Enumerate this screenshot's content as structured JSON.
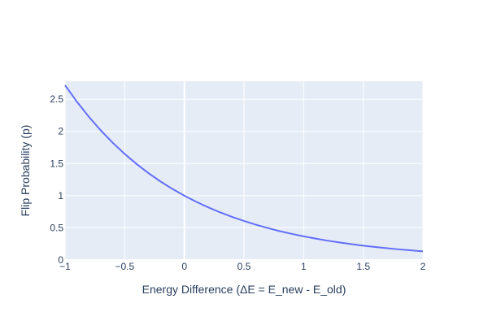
{
  "chart_data": {
    "type": "line",
    "xlabel": "Energy Difference (ΔE = E_new - E_old)",
    "ylabel": "Flip Probability (p)",
    "xlim": [
      -1,
      2
    ],
    "ylim": [
      0,
      2.78
    ],
    "grid": true,
    "x_ticks": [
      -1,
      -0.5,
      0,
      0.5,
      1,
      1.5,
      2
    ],
    "x_tick_labels": [
      "−1",
      "−0.5",
      "0",
      "0.5",
      "1",
      "1.5",
      "2"
    ],
    "y_ticks": [
      0,
      0.5,
      1,
      1.5,
      2,
      2.5
    ],
    "y_tick_labels": [
      "0",
      "0.5",
      "1",
      "1.5",
      "2",
      "2.5"
    ],
    "colors": {
      "plot_background": "#e5ecf6",
      "grid": "#ffffff",
      "line": "#636efa",
      "text": "#2a3f5f"
    },
    "series": [
      {
        "x": [
          -1,
          -0.9,
          -0.8,
          -0.7,
          -0.6,
          -0.5,
          -0.4,
          -0.3,
          -0.2,
          -0.1,
          0,
          0.1,
          0.2,
          0.3,
          0.4,
          0.5,
          0.6,
          0.7,
          0.8,
          0.9,
          1,
          1.1,
          1.2,
          1.3,
          1.4,
          1.5,
          1.6,
          1.7,
          1.8,
          1.9,
          2
        ],
        "y": [
          2.718,
          2.46,
          2.226,
          2.014,
          1.822,
          1.649,
          1.492,
          1.35,
          1.221,
          1.105,
          1,
          0.905,
          0.819,
          0.741,
          0.67,
          0.607,
          0.549,
          0.497,
          0.449,
          0.407,
          0.368,
          0.333,
          0.301,
          0.273,
          0.247,
          0.223,
          0.202,
          0.183,
          0.165,
          0.15,
          0.135
        ]
      }
    ]
  }
}
